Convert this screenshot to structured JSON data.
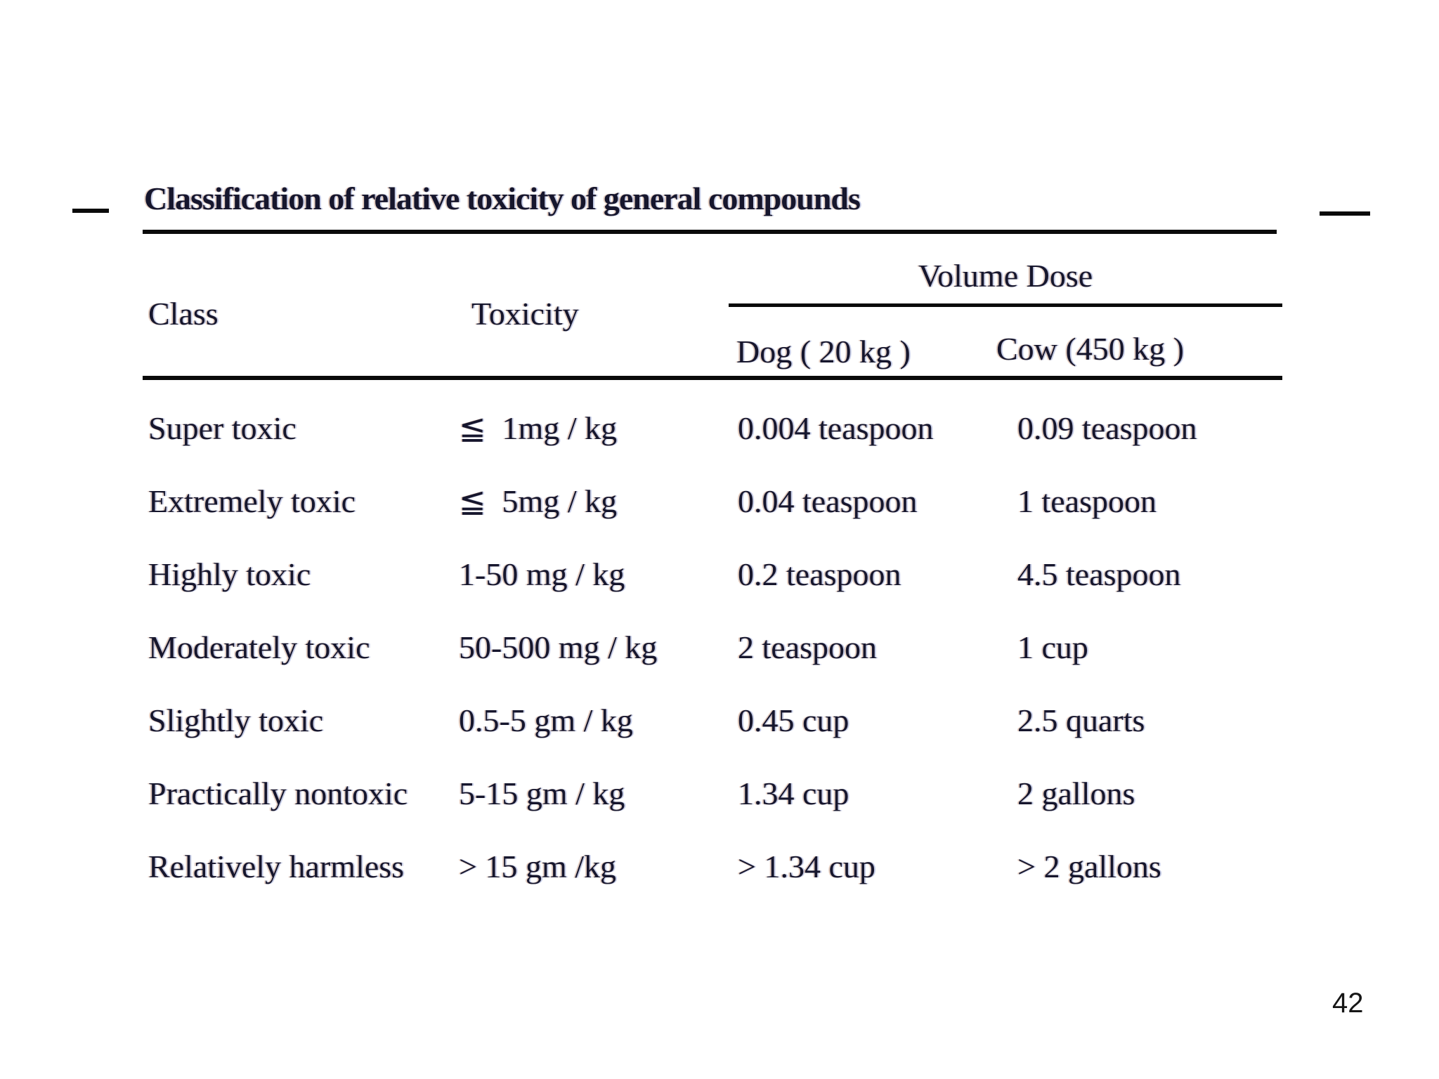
{
  "page": {
    "background": "#ffffff",
    "page_number": "42"
  },
  "colors": {
    "text": "#16162d",
    "rule": "#0a0a0a",
    "page_number": "#161616"
  },
  "table": {
    "title": "Classification of relative toxicity of general compounds",
    "headers": {
      "class": "Class",
      "toxicity": "Toxicity",
      "volume_dose": "Volume Dose",
      "dog": "Dog ( 20 kg )",
      "cow": "Cow (450 kg )"
    },
    "rows": [
      {
        "class": "Super toxic",
        "toxicity": "≦  1mg / kg",
        "dog": "0.004 teaspoon",
        "cow": "0.09 teaspoon"
      },
      {
        "class": "Extremely toxic",
        "toxicity": "≦  5mg / kg",
        "dog": "0.04 teaspoon",
        "cow": "1 teaspoon"
      },
      {
        "class": "Highly toxic",
        "toxicity": "1-50 mg / kg",
        "dog": "0.2 teaspoon",
        "cow": "4.5 teaspoon"
      },
      {
        "class": "Moderately toxic",
        "toxicity": "50-500 mg / kg",
        "dog": "2 teaspoon",
        "cow": "1 cup"
      },
      {
        "class": "Slightly toxic",
        "toxicity": "0.5-5 gm / kg",
        "dog": "0.45 cup",
        "cow": "2.5 quarts"
      },
      {
        "class": "Practically nontoxic",
        "toxicity": "5-15 gm / kg",
        "dog": "1.34 cup",
        "cow": "2 gallons"
      },
      {
        "class": "Relatively harmless",
        "toxicity": "> 15 gm /kg",
        "dog": "> 1.34 cup",
        "cow": "> 2 gallons"
      }
    ]
  }
}
